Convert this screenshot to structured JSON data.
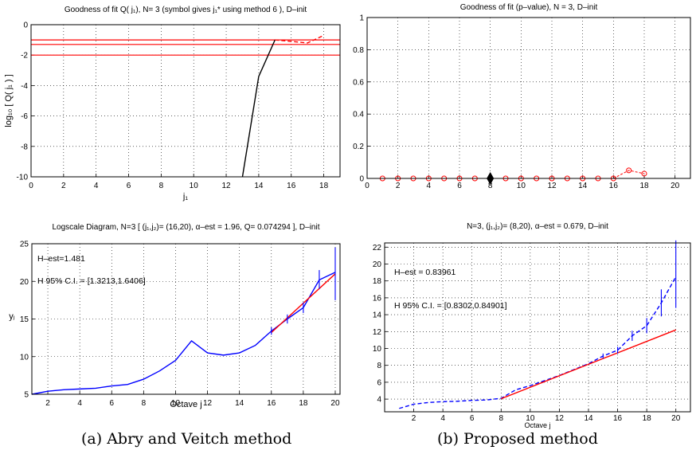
{
  "captions": [
    "(a) Abry and Veitch method",
    "(b) Proposed method"
  ],
  "chart_data": [
    {
      "type": "line",
      "title": "Goodness of fit  Q( j₁),  N= 3   (symbol gives j₁* using method 6 ),   D–init",
      "xlabel": "j₁",
      "ylabel": "log₁₀ [ Q( j₁ ) ]",
      "xlim": [
        0,
        19
      ],
      "ylim": [
        -10,
        0
      ],
      "xticks": [
        0,
        2,
        4,
        6,
        8,
        10,
        12,
        14,
        16,
        18
      ],
      "yticks": [
        -10,
        -8,
        -6,
        -4,
        -2,
        0
      ],
      "hlines": [
        -2,
        -1.3,
        -1
      ],
      "series": [
        {
          "style": "solid",
          "color": "#000000",
          "x": [
            13,
            14,
            15
          ],
          "y": [
            -10,
            -3.4,
            -1
          ]
        },
        {
          "style": "dashed",
          "color": "#ff0000",
          "x": [
            15,
            16,
            17,
            18
          ],
          "y": [
            -1,
            -1.1,
            -1.2,
            -0.7
          ]
        }
      ],
      "grid": true
    },
    {
      "type": "scatter",
      "title": "Goodness of fit (p–value),  N = 3,   D–init",
      "xlim": [
        0,
        21
      ],
      "ylim": [
        0,
        1
      ],
      "xticks": [
        0,
        2,
        4,
        6,
        8,
        10,
        12,
        14,
        16,
        18,
        20
      ],
      "yticks": [
        0,
        0.2,
        0.4,
        0.6,
        0.8,
        1
      ],
      "x": [
        1,
        2,
        3,
        4,
        5,
        6,
        7,
        8,
        9,
        10,
        11,
        12,
        13,
        14,
        15,
        16,
        17,
        18
      ],
      "y": [
        0,
        0,
        0,
        0,
        0,
        0,
        0,
        0,
        0,
        0,
        0,
        0,
        0,
        0,
        0,
        0,
        0.05,
        0.03
      ],
      "selected_x": 8,
      "grid": true
    },
    {
      "type": "line",
      "title": "Logscale Diagram,  N=3    [ (j₁,j₂)= (16,20),   α–est = 1.96,    Q= 0.074294 ],   D–init",
      "xlabel": "Octave j",
      "ylabel": "yⱼ",
      "xlim": [
        1,
        20.3
      ],
      "ylim": [
        5,
        25
      ],
      "xticks": [
        2,
        4,
        6,
        8,
        10,
        12,
        14,
        16,
        18,
        20
      ],
      "yticks": [
        5,
        10,
        15,
        20,
        25
      ],
      "annotations": [
        "H–est=1.481",
        "H 95% C.I. = [1.3213,1.6406]"
      ],
      "series": [
        {
          "style": "solid",
          "color": "#0000ff",
          "x": [
            1,
            2,
            3,
            4,
            5,
            6,
            7,
            8,
            9,
            10,
            11,
            12,
            13,
            14,
            15,
            16,
            17,
            18,
            19,
            20
          ],
          "y": [
            5,
            5.4,
            5.6,
            5.7,
            5.8,
            6.1,
            6.3,
            7.0,
            8.1,
            9.5,
            12.1,
            10.5,
            10.2,
            10.5,
            11.5,
            13.4,
            15.0,
            16.5,
            20.2,
            21.2
          ]
        },
        {
          "style": "solid",
          "color": "#ff0000",
          "x": [
            16,
            20
          ],
          "y": [
            13.2,
            21.0
          ]
        }
      ],
      "error_bars": [
        {
          "x": 16,
          "low": 12.9,
          "high": 13.9
        },
        {
          "x": 17,
          "low": 14.4,
          "high": 15.6
        },
        {
          "x": 18,
          "low": 15.8,
          "high": 17.2
        },
        {
          "x": 19,
          "low": 19.0,
          "high": 21.5
        },
        {
          "x": 20,
          "low": 17.5,
          "high": 24.5
        }
      ],
      "grid": true
    },
    {
      "type": "line",
      "title": "N=3,  (j₁,j₂)= (8,20),  α–est = 0.679,   D–init",
      "xlabel": "Octave j",
      "xlim": [
        0,
        21
      ],
      "ylim": [
        2.5,
        22.5
      ],
      "xticks": [
        2,
        4,
        6,
        8,
        10,
        12,
        14,
        16,
        18,
        20
      ],
      "yticks": [
        4,
        6,
        8,
        10,
        12,
        14,
        16,
        18,
        20,
        22
      ],
      "annotations": [
        "H–est = 0.83961",
        "H 95% C.I. = [0.8302,0.84901]"
      ],
      "series": [
        {
          "style": "dashed",
          "color": "#0000ff",
          "x": [
            1,
            2,
            3,
            4,
            5,
            6,
            7,
            8,
            9,
            10,
            11,
            12,
            13,
            14,
            15,
            16,
            17,
            18,
            19,
            20
          ],
          "y": [
            2.9,
            3.4,
            3.6,
            3.7,
            3.75,
            3.85,
            3.9,
            4.1,
            5.1,
            5.6,
            6.2,
            6.8,
            7.5,
            8.2,
            9.1,
            9.8,
            11.5,
            12.7,
            15.4,
            18.5
          ]
        },
        {
          "style": "solid",
          "color": "#ff0000",
          "x": [
            8,
            20
          ],
          "y": [
            4.05,
            12.2
          ]
        }
      ],
      "error_bars": [
        {
          "x": 15,
          "low": 8.8,
          "high": 9.4
        },
        {
          "x": 16,
          "low": 9.4,
          "high": 10.2
        },
        {
          "x": 17,
          "low": 10.9,
          "high": 12.1
        },
        {
          "x": 18,
          "low": 11.8,
          "high": 13.6
        },
        {
          "x": 19,
          "low": 13.8,
          "high": 17.0
        },
        {
          "x": 20,
          "low": 14.8,
          "high": 22.8
        }
      ],
      "grid": true
    }
  ]
}
